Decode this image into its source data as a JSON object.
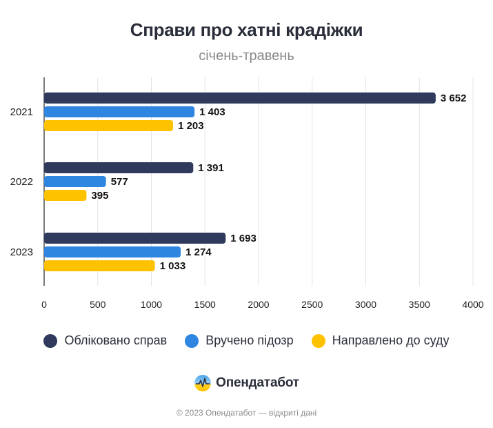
{
  "colors": {
    "registered": "#2f3a5c",
    "suspicion": "#2f86e0",
    "court": "#ffc200",
    "grid": "#e4e4e4",
    "axis": "#222222",
    "text": "#1d1d1f"
  },
  "brand": {
    "name": "Опендатабот",
    "icon": "opendatabot-logo-icon"
  },
  "footer": "© 2023 Опендатабот — відкриті дані",
  "chart_data": {
    "type": "bar",
    "orientation": "horizontal",
    "title": "Справи про хатні крадіжки",
    "subtitle": "січень-травень",
    "categories": [
      "2021",
      "2022",
      "2023"
    ],
    "series": [
      {
        "name": "Обліковано справ",
        "values": [
          3652,
          1391,
          1693
        ],
        "labels": [
          "3 652",
          "1 391",
          "1 693"
        ]
      },
      {
        "name": "Вручено підозр",
        "values": [
          1403,
          577,
          1274
        ],
        "labels": [
          "1 403",
          "577",
          "1 274"
        ]
      },
      {
        "name": "Направлено до суду",
        "values": [
          1203,
          395,
          1033
        ],
        "labels": [
          "1 203",
          "395",
          "1 033"
        ]
      }
    ],
    "xlim": [
      0,
      4000
    ],
    "xticks": [
      "0",
      "500",
      "1000",
      "1500",
      "2000",
      "2500",
      "3000",
      "3500",
      "4000"
    ],
    "grid": true,
    "legend_position": "bottom"
  }
}
